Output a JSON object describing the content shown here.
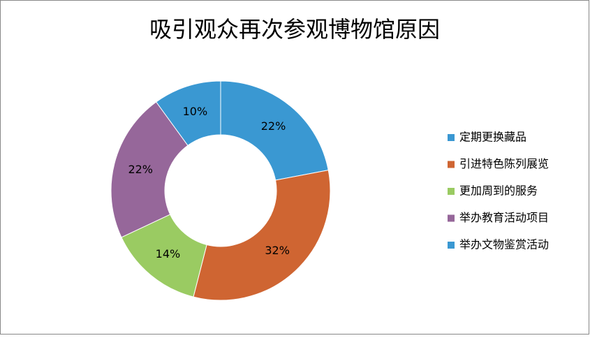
{
  "chart_data": {
    "type": "donut",
    "title": "吸引观众再次参观博物馆原因",
    "categories": [
      "定期更换藏品",
      "引进特色陈列展览",
      "更加周到的服务",
      "举办教育活动项目",
      "举办文物鉴赏活动"
    ],
    "values": [
      22,
      32,
      14,
      22,
      10
    ],
    "value_labels": [
      "22%",
      "32%",
      "14%",
      "22%",
      "10%"
    ],
    "colors": [
      "#3a98d2",
      "#cf6532",
      "#9acb62",
      "#96679a",
      "#3a98d2"
    ],
    "legend": "right"
  }
}
